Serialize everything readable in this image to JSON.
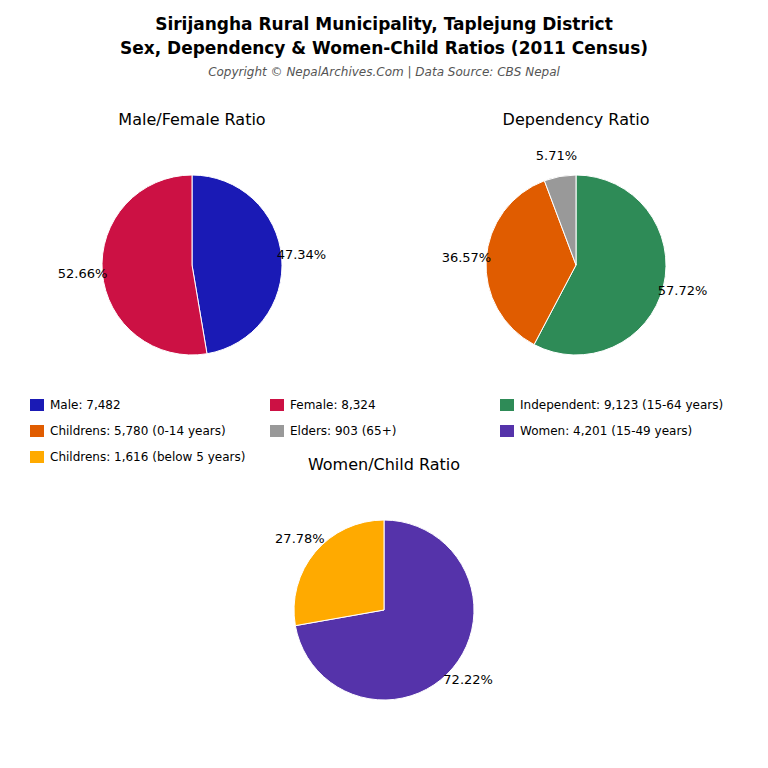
{
  "title": "Sirijangha Rural Municipality, Taplejung District",
  "subtitle": "Sex, Dependency & Women-Child Ratios (2011 Census)",
  "annotations": [
    "Copyright © NepalArchives.Com | Data Source: CBS Nepal"
  ],
  "chart_data": [
    {
      "type": "pie",
      "title": "Male/Female Ratio",
      "categories": [
        "Male: 7,482",
        "Female: 8,324"
      ],
      "values": [
        47.34,
        52.66
      ],
      "value_labels": [
        "47.34%",
        "52.66%"
      ],
      "colors": [
        "#1a1ab5",
        "#cc1144"
      ],
      "data_labels": true,
      "legend": "bottom"
    },
    {
      "type": "pie",
      "title": "Dependency Ratio",
      "categories": [
        "Independent: 9,123 (15-64 years)",
        "Childrens: 5,780 (0-14 years)",
        "Elders: 903 (65+)"
      ],
      "values": [
        57.72,
        36.57,
        5.71
      ],
      "value_labels": [
        "57.72%",
        "36.57%",
        "5.71%"
      ],
      "colors": [
        "#2e8b57",
        "#e05c00",
        "#999999"
      ],
      "data_labels": true,
      "legend": "bottom"
    },
    {
      "type": "pie",
      "title": "Women/Child Ratio",
      "categories": [
        "Women: 4,201 (15-49 years)",
        "Childrens: 1,616 (below 5 years)"
      ],
      "values": [
        72.22,
        27.78
      ],
      "value_labels": [
        "72.22%",
        "27.78%"
      ],
      "colors": [
        "#5533aa",
        "#ffaa00"
      ],
      "data_labels": true,
      "legend": "bottom"
    }
  ]
}
